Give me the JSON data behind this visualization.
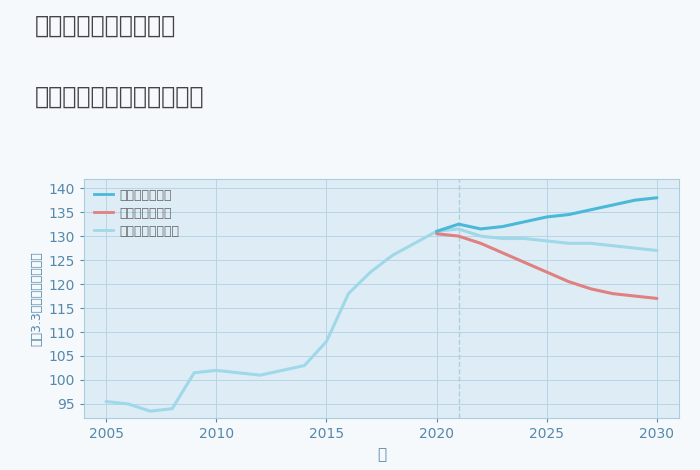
{
  "title_line1": "兵庫県姫路市南今宿の",
  "title_line2": "中古マンションの価格推移",
  "xlabel": "年",
  "ylabel": "坪（3.3㎡）単価（万円）",
  "fig_bg_color": "#f5f9fc",
  "plot_bg_color": "#deedf5",
  "grid_color": "#b8d4e4",
  "xlim": [
    2004,
    2031
  ],
  "ylim": [
    92,
    142
  ],
  "yticks": [
    95,
    100,
    105,
    110,
    115,
    120,
    125,
    130,
    135,
    140
  ],
  "xticks": [
    2005,
    2010,
    2015,
    2020,
    2025,
    2030
  ],
  "good_color": "#4ab8d8",
  "bad_color": "#e08080",
  "normal_color": "#9fd8e8",
  "good_label": "グッドシナリオ",
  "bad_label": "バッドシナリオ",
  "normal_label": "ノーマルシナリオ",
  "history_years": [
    2005,
    2006,
    2007,
    2008,
    2009,
    2010,
    2011,
    2012,
    2013,
    2014,
    2015,
    2016,
    2017,
    2018,
    2019,
    2020
  ],
  "history_values": [
    95.5,
    95.0,
    93.5,
    94.0,
    101.5,
    102.0,
    101.5,
    101.0,
    102.0,
    103.0,
    108.0,
    118.0,
    122.5,
    126.0,
    128.5,
    131.0
  ],
  "good_years": [
    2020,
    2021,
    2022,
    2023,
    2024,
    2025,
    2026,
    2027,
    2028,
    2029,
    2030
  ],
  "good_values": [
    131.0,
    132.5,
    131.5,
    132.0,
    133.0,
    134.0,
    134.5,
    135.5,
    136.5,
    137.5,
    138.0
  ],
  "bad_years": [
    2020,
    2021,
    2022,
    2023,
    2024,
    2025,
    2026,
    2027,
    2028,
    2029,
    2030
  ],
  "bad_values": [
    130.5,
    130.0,
    128.5,
    126.5,
    124.5,
    122.5,
    120.5,
    119.0,
    118.0,
    117.5,
    117.0
  ],
  "normal_years": [
    2020,
    2021,
    2022,
    2023,
    2024,
    2025,
    2026,
    2027,
    2028,
    2029,
    2030
  ],
  "normal_values": [
    131.0,
    131.5,
    130.0,
    129.5,
    129.5,
    129.0,
    128.5,
    128.5,
    128.0,
    127.5,
    127.0
  ],
  "divider_x": 2021,
  "title_color": "#444444",
  "axis_label_color": "#5588aa",
  "tick_color": "#5588aa",
  "spine_color": "#aaccdd"
}
